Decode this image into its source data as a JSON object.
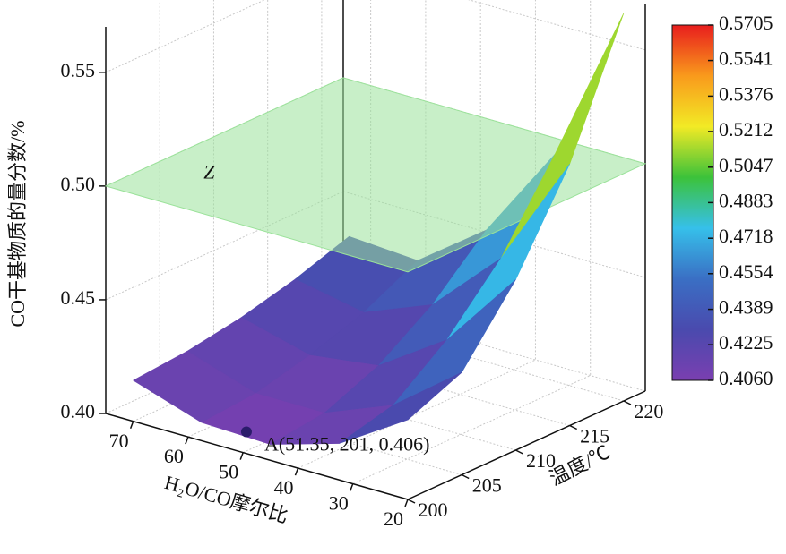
{
  "chart_data": {
    "type": "surface3d",
    "zlabel": "CO干基物质的量分数/%",
    "xlabel": "H₂O/CO摩尔比",
    "ylabel": "温度/℃",
    "xlim": [
      20,
      75
    ],
    "xticks": [
      20,
      30,
      40,
      50,
      60,
      70
    ],
    "ylim": [
      200,
      222
    ],
    "yticks": [
      200,
      205,
      210,
      215,
      220
    ],
    "zlim": [
      0.4,
      0.57
    ],
    "zticks": [
      {
        "value": 0.4,
        "label": "0.40"
      },
      {
        "value": 0.45,
        "label": "0.45"
      },
      {
        "value": 0.5,
        "label": "0.50"
      },
      0.55
    ],
    "x": [
      20,
      32.5,
      45,
      57.5,
      70
    ],
    "y": [
      200,
      205,
      210,
      215,
      220
    ],
    "z": [
      [
        0.435,
        0.416,
        0.407,
        0.408,
        0.418
      ],
      [
        0.445,
        0.422,
        0.41,
        0.41,
        0.42
      ],
      [
        0.475,
        0.44,
        0.42,
        0.416,
        0.424
      ],
      [
        0.515,
        0.465,
        0.436,
        0.424,
        0.43
      ],
      [
        0.5705,
        0.5,
        0.458,
        0.436,
        0.438
      ]
    ],
    "plane": {
      "z": 0.5,
      "label": "Z",
      "color": "#9be29a"
    },
    "point": {
      "x": 51.35,
      "y": 201,
      "z": 0.406,
      "label": "A(51.35, 201, 0.406)",
      "color": "#2b1c6b"
    },
    "colorbar": {
      "lim": [
        0.406,
        0.5705
      ],
      "ticks": [
        {
          "value": 0.406,
          "label": "0.4060"
        },
        0.4225,
        0.4389,
        0.4554,
        0.4718,
        0.4883,
        0.5047,
        0.5212,
        0.5376,
        0.5541,
        0.5705
      ],
      "colormap": [
        "#7a3fb0",
        "#4a4aae",
        "#3a6fc4",
        "#36c0ea",
        "#3cc23a",
        "#f2ea25",
        "#f99a1c",
        "#e81d1d"
      ]
    }
  }
}
